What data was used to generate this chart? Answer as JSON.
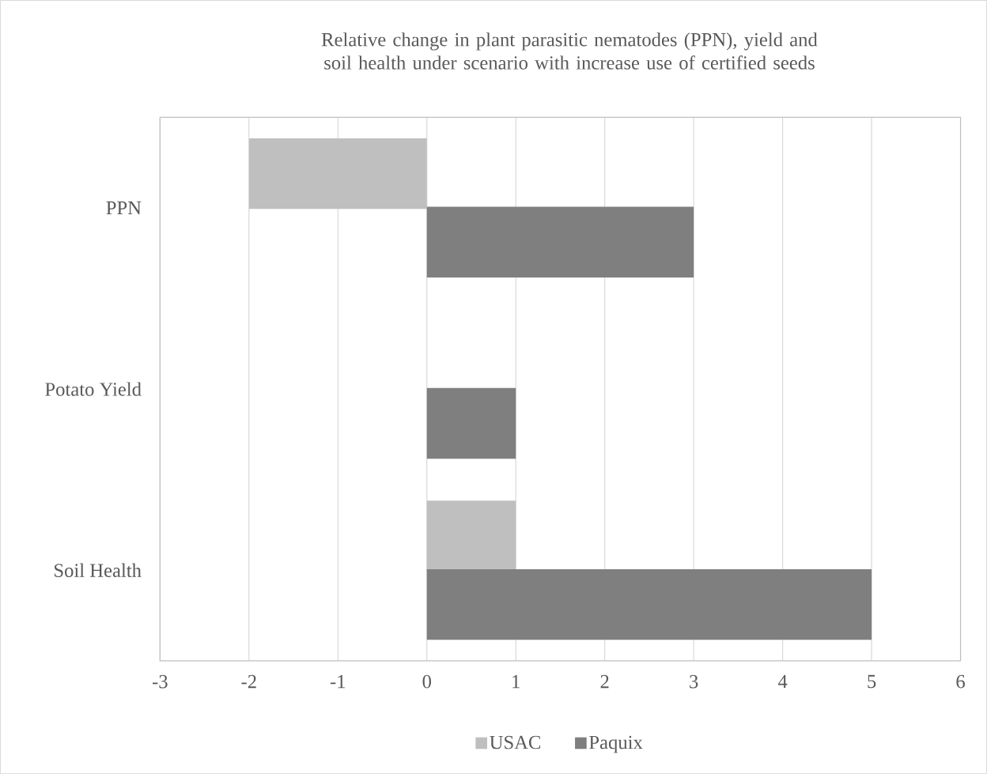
{
  "chart_data": {
    "type": "bar",
    "orientation": "horizontal",
    "title": "Relative change in plant parasitic nematodes (PPN), yield and soil health under scenario with increase use of certified seeds",
    "categories": [
      "PPN",
      "Potato Yield",
      "Soil Health"
    ],
    "series": [
      {
        "name": "USAC",
        "color": "#bfbfbf",
        "values": [
          -2,
          0,
          1
        ]
      },
      {
        "name": "Paquix",
        "color": "#7f7f7f",
        "values": [
          3,
          1,
          5
        ]
      }
    ],
    "xlim": [
      -3,
      6
    ],
    "xticks": [
      -3,
      -2,
      -1,
      0,
      1,
      2,
      3,
      4,
      5,
      6
    ],
    "grid": "x",
    "legend": "bottom"
  }
}
